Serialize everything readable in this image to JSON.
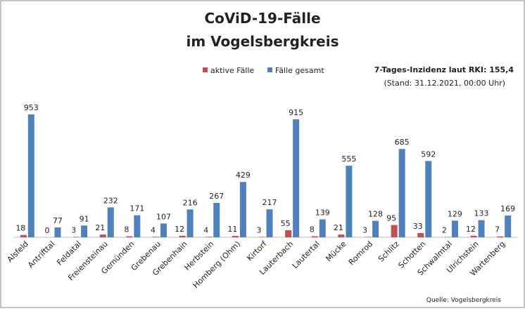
{
  "chart_data": {
    "type": "bar",
    "title": [
      "CoViD-19-Fälle",
      "im Vogelsbergkreis"
    ],
    "annotations": [
      "7-Tages-Inzidenz laut RKI: 155,4",
      "(Stand: 31.12.2021, 00:00 Uhr)",
      "Quelle: Vogelsbergkreis"
    ],
    "categories": [
      "Alsfeld",
      "Antrifttal",
      "Feldatal",
      "Freiensteinau",
      "Gemünden",
      "Grebenau",
      "Grebenhain",
      "Herbstein",
      "Homberg (Ohm)",
      "Kirtorf",
      "Lauterbach",
      "Lautertal",
      "Mücke",
      "Romrod",
      "Schlitz",
      "Schotten",
      "Schwalmtal",
      "Ulrichstein",
      "Wartenberg"
    ],
    "series": [
      {
        "name": "aktive Fälle",
        "color": "#c0504d",
        "values": [
          18,
          0,
          3,
          21,
          8,
          4,
          12,
          4,
          11,
          3,
          55,
          8,
          21,
          3,
          95,
          33,
          2,
          12,
          7
        ]
      },
      {
        "name": "Fälle gesamt",
        "color": "#4f81bd",
        "values": [
          953,
          77,
          91,
          232,
          171,
          107,
          216,
          267,
          429,
          217,
          915,
          139,
          555,
          128,
          685,
          592,
          129,
          133,
          169
        ]
      }
    ]
  }
}
